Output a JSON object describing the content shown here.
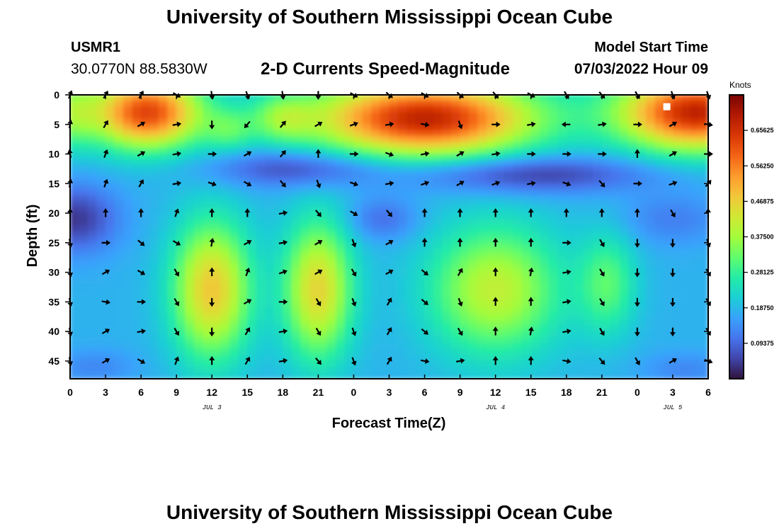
{
  "header": {
    "title": "University of Southern Mississippi Ocean Cube",
    "station_id": "USMR1",
    "coords": "30.0770N  88.5830W",
    "subtitle": "2-D Currents Speed-Magnitude",
    "model_start_label": "Model Start Time",
    "model_start_value": "07/03/2022 Hour 09"
  },
  "footer": {
    "title": "University of Southern Mississippi Ocean Cube"
  },
  "colors": {
    "scale": [
      "#30123b",
      "#4145ab",
      "#4675ed",
      "#39a2fc",
      "#1bcfd4",
      "#24eca6",
      "#61fc6c",
      "#a4fc3b",
      "#d1e834",
      "#f3c63a",
      "#fe9b2d",
      "#f36315",
      "#d93806",
      "#b11901",
      "#7a0403"
    ]
  },
  "chart_data": {
    "type": "heatmap",
    "title": "2-D Currents Speed-Magnitude",
    "xlabel": "Forecast Time(Z)",
    "ylabel": "Depth (ft)",
    "colorbar_label": "Knots",
    "x_range_hours": [
      0,
      54
    ],
    "x_ticks": [
      0,
      3,
      6,
      9,
      12,
      15,
      18,
      21,
      24,
      27,
      30,
      33,
      36,
      39,
      42,
      45,
      48,
      51,
      54
    ],
    "x_tick_labels": [
      "0",
      "3",
      "6",
      "9",
      "12",
      "15",
      "18",
      "21",
      "0",
      "3",
      "6",
      "9",
      "12",
      "15",
      "18",
      "21",
      "0",
      "3",
      "6"
    ],
    "day_labels": [
      {
        "hour": 12,
        "text": "JUL 3"
      },
      {
        "hour": 36,
        "text": "JUL 4"
      },
      {
        "hour": 51,
        "text": "JUL 5"
      }
    ],
    "y_range": [
      0,
      48
    ],
    "y_ticks": [
      0,
      5,
      10,
      15,
      20,
      25,
      30,
      35,
      40,
      45
    ],
    "y_tick_labels": [
      "0",
      "5",
      "10",
      "15",
      "20",
      "25",
      "30",
      "35",
      "40",
      "45"
    ],
    "colorbar_range": [
      0,
      0.75
    ],
    "colorbar_ticks": [
      0.09375,
      0.1875,
      0.28125,
      0.375,
      0.46875,
      0.5625,
      0.65625
    ],
    "colorbar_tick_labels": [
      "0.09375",
      "0.18750",
      "0.28125",
      "0.37500",
      "0.46875",
      "0.56250",
      "0.65625"
    ],
    "marker": {
      "hour": 50.5,
      "depth": 2
    },
    "arrow_hours": [
      0,
      3,
      6,
      9,
      12,
      15,
      18,
      21,
      24,
      27,
      30,
      33,
      36,
      39,
      42,
      45,
      48,
      51,
      54
    ],
    "arrow_depths": [
      0,
      5,
      10,
      15,
      20,
      25,
      30,
      35,
      40,
      45
    ],
    "arrow_directions_deg": [
      [
        20,
        30,
        30,
        120,
        170,
        160,
        170,
        180,
        120,
        130,
        120,
        130,
        140,
        120,
        150,
        140,
        150,
        160,
        160
      ],
      [
        10,
        30,
        60,
        80,
        180,
        220,
        40,
        60,
        70,
        80,
        100,
        160,
        90,
        80,
        270,
        80,
        90,
        60,
        100
      ],
      [
        350,
        20,
        60,
        80,
        90,
        60,
        40,
        0,
        90,
        110,
        80,
        60,
        80,
        90,
        90,
        90,
        0,
        60,
        90
      ],
      [
        10,
        20,
        30,
        80,
        110,
        120,
        140,
        160,
        110,
        80,
        70,
        60,
        70,
        80,
        110,
        140,
        90,
        70,
        40
      ],
      [
        0,
        0,
        0,
        20,
        0,
        0,
        80,
        140,
        120,
        140,
        0,
        0,
        0,
        0,
        0,
        0,
        0,
        150,
        0
      ],
      [
        170,
        90,
        130,
        120,
        10,
        60,
        80,
        60,
        160,
        60,
        0,
        0,
        0,
        0,
        90,
        150,
        180,
        180,
        160
      ],
      [
        170,
        60,
        120,
        150,
        0,
        20,
        70,
        60,
        150,
        60,
        130,
        30,
        0,
        10,
        80,
        150,
        180,
        180,
        150
      ],
      [
        170,
        100,
        90,
        150,
        180,
        60,
        90,
        150,
        160,
        30,
        130,
        160,
        0,
        0,
        80,
        150,
        180,
        180,
        150
      ],
      [
        170,
        60,
        80,
        150,
        180,
        30,
        80,
        150,
        160,
        30,
        130,
        150,
        0,
        10,
        80,
        150,
        180,
        180,
        150
      ],
      [
        170,
        60,
        120,
        20,
        0,
        30,
        80,
        140,
        160,
        30,
        100,
        80,
        0,
        0,
        100,
        140,
        150,
        60,
        110
      ]
    ]
  }
}
